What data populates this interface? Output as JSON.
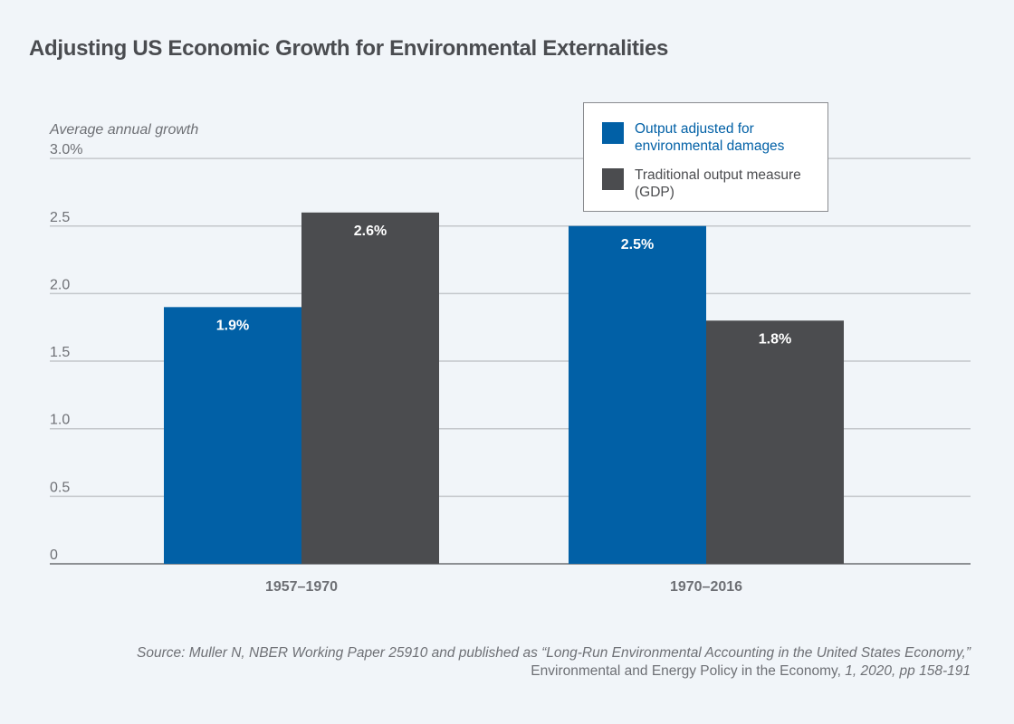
{
  "title": "Adjusting US Economic Growth for Environmental Externalities",
  "colors": {
    "background": "#f1f5f9",
    "adjusted": "#0160a6",
    "traditional": "#4b4c4f",
    "gridline": "#c4c7cb",
    "axis": "#8d9094",
    "text": "#4a4c50",
    "muted_text": "#6e7075"
  },
  "legend": {
    "items": [
      {
        "label": "Output adjusted for environmental damages",
        "color": "#0160a6",
        "text_color": "#0160a6"
      },
      {
        "label": "Traditional output measure (GDP)",
        "color": "#4b4c4f",
        "text_color": "#4b4c4f"
      }
    ]
  },
  "source": {
    "part1_italic": "Source: Muller N, NBER Working Paper 25910 and published as “Long-Run Environmental Accounting in the United States Economy,”",
    "part2_regular": " Environmental and Energy Policy in the Economy,",
    "part3_italic": " 1, 2020, pp 158-191"
  },
  "chart_data": {
    "type": "bar",
    "title": "Adjusting US Economic Growth for Environmental Externalities",
    "xlabel": "",
    "ylabel": "Average annual growth",
    "categories": [
      "1957–1970",
      "1970–2016"
    ],
    "series": [
      {
        "name": "Output adjusted for environmental damages",
        "values": [
          1.9,
          2.5
        ],
        "labels": [
          "1.9%",
          "2.5%"
        ],
        "color": "#0160a6"
      },
      {
        "name": "Traditional output measure (GDP)",
        "values": [
          2.6,
          1.8
        ],
        "labels": [
          "2.6%",
          "1.8%"
        ],
        "color": "#4b4c4f"
      }
    ],
    "ylim": [
      0,
      3.0
    ],
    "yticks": [
      0,
      0.5,
      1.0,
      1.5,
      2.0,
      2.5,
      3.0
    ],
    "ytick_labels": [
      "0",
      "0.5",
      "1.0",
      "1.5",
      "2.0",
      "2.5",
      "3.0%"
    ],
    "grid": true,
    "legend_position": "top-right"
  }
}
